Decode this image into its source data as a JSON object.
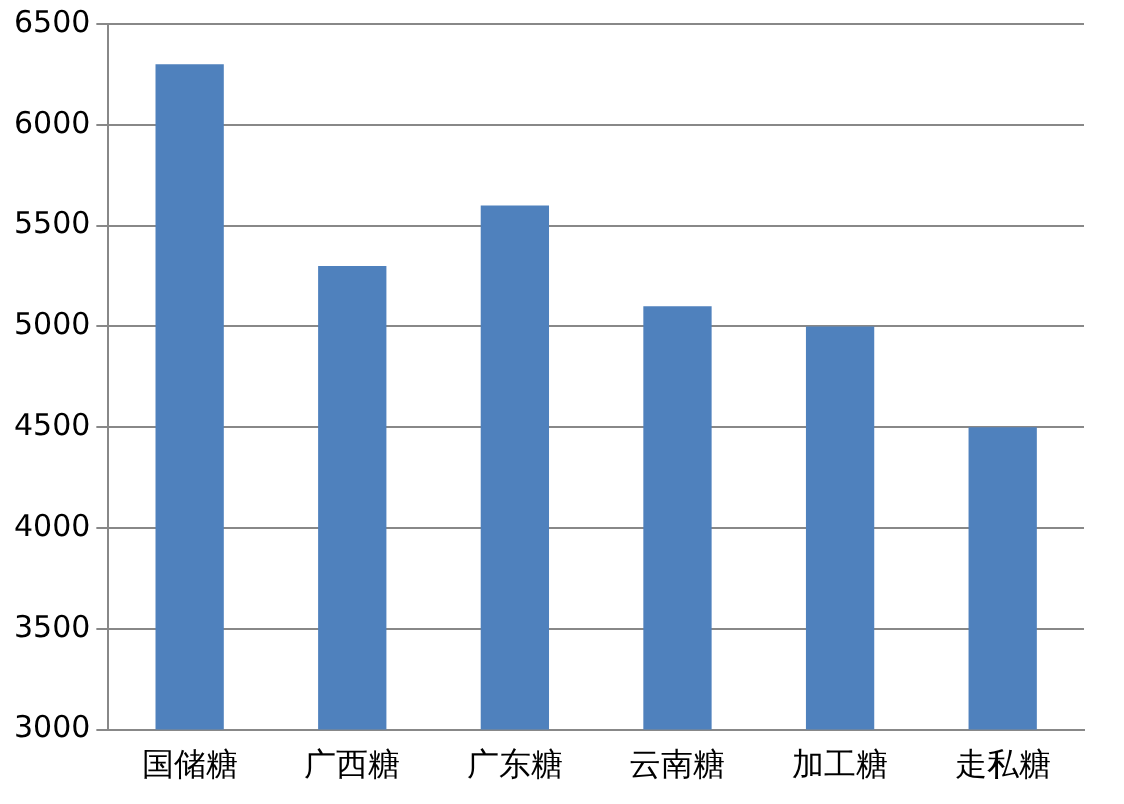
{
  "chart_data": {
    "type": "bar",
    "categories": [
      "国储糖",
      "广西糖",
      "广东糖",
      "云南糖",
      "加工糖",
      "走私糖"
    ],
    "values": [
      6300,
      5300,
      5600,
      5100,
      5000,
      4500
    ],
    "color": "#4f81bd",
    "ylim": [
      3000,
      6500
    ],
    "yticks": [
      3000,
      3500,
      4000,
      4500,
      5000,
      5500,
      6000,
      6500
    ],
    "grid": "y"
  }
}
